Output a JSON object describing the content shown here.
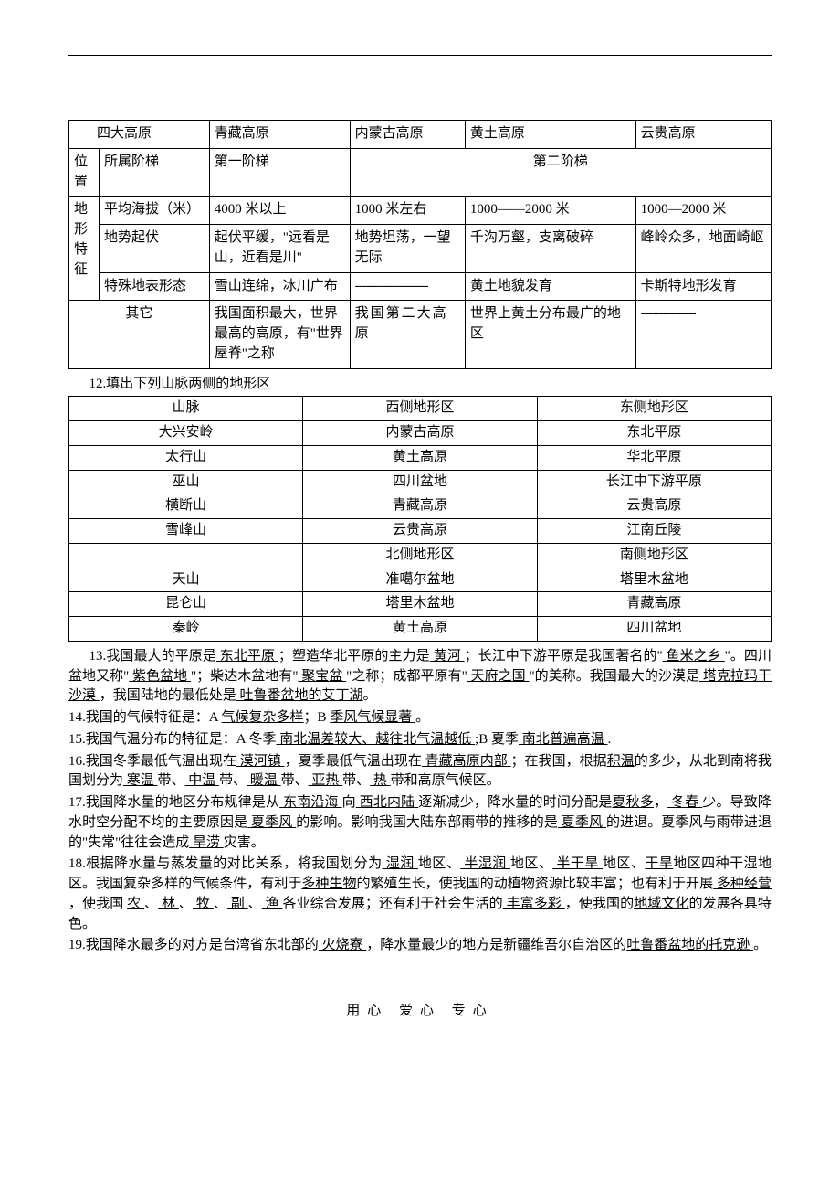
{
  "table1": {
    "cols_width": [
      "30px",
      "105px",
      "135px",
      "110px",
      "180px",
      "135px"
    ],
    "rows": [
      {
        "c0": "",
        "c1": "四大高原",
        "c2": "青藏高原",
        "c3": "内蒙古高原",
        "c4": "黄土高原",
        "c5": "云贵高原"
      },
      {
        "c0": "位置",
        "c1": "所属阶梯",
        "c2": "第一阶梯",
        "c3": "第二阶梯",
        "c3_colspan": 3
      },
      {
        "c0": "地形特征",
        "c0_rowspan": 4,
        "c1": "平均海拔（米）",
        "c2": "4000 米以上",
        "c3": "1000 米左右",
        "c4": "1000——2000 米",
        "c5": "1000—2000 米"
      },
      {
        "c1": "地势起伏",
        "c2": "起伏平缓，\"远看是山，近看是川\"",
        "c3": "地势坦荡，一望无际",
        "c4": "千沟万壑，支离破碎",
        "c5": "峰岭众多，地面崎岖"
      },
      {
        "c1": "特殊地表形态",
        "c2": "雪山连绵，冰川广布",
        "c3": "--------------------",
        "c4": "黄土地貌发育",
        "c5": "卡斯特地形发育"
      },
      {
        "c1": "其它",
        "c2": "我国面积最大，世界最高的高原，有\"世界屋脊\"之称",
        "c3": "我国第二大高原",
        "c4": "世界上黄土分布最广的地区",
        "c5": "---------------"
      }
    ]
  },
  "line12": "12.填出下列山脉两侧的地形区",
  "table2": {
    "cols_width": [
      "33.3%",
      "33.3%",
      "33.4%"
    ],
    "rows": [
      [
        "山脉",
        "西侧地形区",
        "东侧地形区"
      ],
      [
        "大兴安岭",
        "内蒙古高原",
        "东北平原"
      ],
      [
        "太行山",
        "黄土高原",
        "华北平原"
      ],
      [
        "巫山",
        "四川盆地",
        "长江中下游平原"
      ],
      [
        "横断山",
        "青藏高原",
        "云贵高原"
      ],
      [
        "雪峰山",
        "云贵高原",
        "江南丘陵"
      ],
      [
        "",
        "北侧地形区",
        "南侧地形区"
      ],
      [
        "天山",
        "准噶尔盆地",
        "塔里木盆地"
      ],
      [
        "昆仑山",
        "塔里木盆地",
        "青藏高原"
      ],
      [
        "秦岭",
        "黄土高原",
        "四川盆地"
      ]
    ]
  },
  "p13": {
    "segments": [
      {
        "t": "13.我国最大的平原是"
      },
      {
        "t": " 东北平原 ",
        "u": 1
      },
      {
        "t": "；塑造华北平原的主力是"
      },
      {
        "t": " 黄河   ",
        "u": 1
      },
      {
        "t": "；长江中下游平原是我国著名的\""
      },
      {
        "t": " 鱼米之乡 ",
        "u": 1
      },
      {
        "t": "\"。四川盆地又称\""
      },
      {
        "t": " 紫色盆地 ",
        "u": 1
      },
      {
        "t": "\"；柴达木盆地有\""
      },
      {
        "t": " 聚宝盆 ",
        "u": 1
      },
      {
        "t": "\"之称；成都平原有\""
      },
      {
        "t": " 天府之国 ",
        "u": 1
      },
      {
        "t": "\"的美称。我国最大的沙漠是"
      },
      {
        "t": " 塔克拉玛干沙漠  ",
        "u": 1
      },
      {
        "t": "，我国陆地的最低处是"
      },
      {
        "t": " 吐鲁番盆地的艾丁湖",
        "u": 1
      },
      {
        "t": "。"
      }
    ]
  },
  "p14": {
    "segments": [
      {
        "t": "14.我国的气候特征是：A "
      },
      {
        "t": " 气候复杂多样",
        "u": 1
      },
      {
        "t": "；B "
      },
      {
        "t": " 季风气候显著    ",
        "u": 1
      },
      {
        "t": "。"
      }
    ]
  },
  "p15": {
    "segments": [
      {
        "t": "15.我国气温分布的特征是：A 冬季"
      },
      {
        "t": " 南北温差较大、越往北气温越低 ",
        "u": 1
      },
      {
        "t": ";B 夏季"
      },
      {
        "t": " 南北普遍高温   ",
        "u": 1
      },
      {
        "t": "."
      }
    ]
  },
  "p16": {
    "segments": [
      {
        "t": "16.我国冬季最低气温出现在"
      },
      {
        "t": " 漠河镇 ",
        "u": 1
      },
      {
        "t": "，夏季最低气温出现在"
      },
      {
        "t": " 青藏高原内部 ",
        "u": 1
      },
      {
        "t": "；在我国，根据"
      },
      {
        "t": "积温",
        "u": 1
      },
      {
        "t": "的多少，从北到南将我国划分为"
      },
      {
        "t": " 寒温 ",
        "u": 1
      },
      {
        "t": "带、"
      },
      {
        "t": " 中温 ",
        "u": 1
      },
      {
        "t": "带、"
      },
      {
        "t": " 暖温 ",
        "u": 1
      },
      {
        "t": "带、"
      },
      {
        "t": " 亚热 ",
        "u": 1
      },
      {
        "t": "  带、"
      },
      {
        "t": " 热 ",
        "u": 1
      },
      {
        "t": "  带和高原气候区。"
      }
    ]
  },
  "p17": {
    "segments": [
      {
        "t": "17.我国降水量的地区分布规律是从"
      },
      {
        "t": " 东南沿海 ",
        "u": 1
      },
      {
        "t": "向"
      },
      {
        "t": " 西北内陆  ",
        "u": 1
      },
      {
        "t": "逐渐减少，降水量的时间分配是"
      },
      {
        "t": "夏秋多",
        "u": 1
      },
      {
        "t": "，"
      },
      {
        "t": " 冬春  ",
        "u": 1
      },
      {
        "t": "少。导致降水时空分配不均的主要原因是"
      },
      {
        "t": " 夏季风 ",
        "u": 1
      },
      {
        "t": "的影响。影响我国大陆东部雨带的推移的是"
      },
      {
        "t": " 夏季风 ",
        "u": 1
      },
      {
        "t": "的进退。夏季风与雨带进退的\"失常\"往往会造成"
      },
      {
        "t": " 旱涝 ",
        "u": 1
      },
      {
        "t": "灾害。"
      }
    ]
  },
  "p18": {
    "segments": [
      {
        "t": "18.根据降水量与蒸发量的对比关系，将我国划分为"
      },
      {
        "t": " 湿润 ",
        "u": 1
      },
      {
        "t": "地区、"
      },
      {
        "t": " 半湿润 ",
        "u": 1
      },
      {
        "t": "地区、"
      },
      {
        "t": " 半干旱 ",
        "u": 1
      },
      {
        "t": "地区、"
      },
      {
        "t": "干旱",
        "u": 1
      },
      {
        "t": "地区四种干湿地区。我国复杂多样的气候条件，有利于"
      },
      {
        "t": "多种生物",
        "u": 1
      },
      {
        "t": "的繁殖生长，使我国的动植物资源比较丰富；也有利于开展"
      },
      {
        "t": " 多种经营  ",
        "u": 1
      },
      {
        "t": "，使我国  "
      },
      {
        "t": " 农 ",
        "u": 1
      },
      {
        "t": "、"
      },
      {
        "t": " 林 ",
        "u": 1
      },
      {
        "t": " 、"
      },
      {
        "t": " 牧 ",
        "u": 1
      },
      {
        "t": "  、"
      },
      {
        "t": " 副 ",
        "u": 1
      },
      {
        "t": "  、"
      },
      {
        "t": " 渔 ",
        "u": 1
      },
      {
        "t": "各业综合发展；还有利于社会生活的"
      },
      {
        "t": " 丰富多彩  ",
        "u": 1
      },
      {
        "t": "，使我国的"
      },
      {
        "t": "地域文化",
        "u": 1
      },
      {
        "t": "的发展各具特色。"
      }
    ]
  },
  "p19": {
    "segments": [
      {
        "t": "19.我国降水最多的对方是台湾省东北部的"
      },
      {
        "t": "  火烧寮   ",
        "u": 1
      },
      {
        "t": "，降水量最少的地方是新疆维吾尔自治区的"
      },
      {
        "t": "吐鲁番盆地的托克逊  ",
        "u": 1
      },
      {
        "t": "。"
      }
    ]
  },
  "footer": "用心  爱心  专心"
}
